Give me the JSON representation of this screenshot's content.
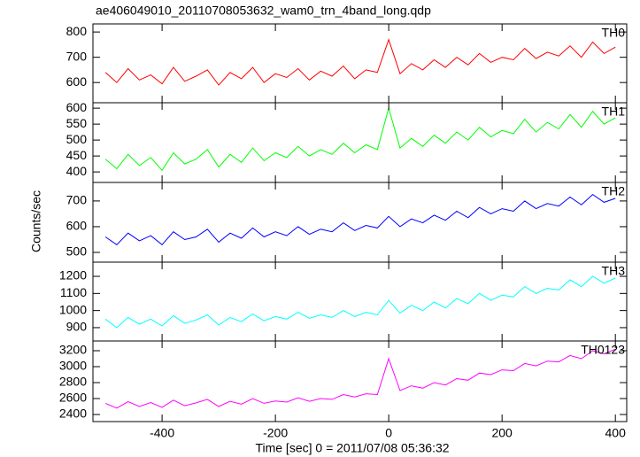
{
  "title": "ae406049010_20110708053632_wam0_trn_4band_long.qdp",
  "ylabel": "Counts/sec",
  "xlabel": "Time [sec] 0 = 2011/07/08 05:36:32",
  "chart_data": [
    {
      "type": "line",
      "label": "TH0",
      "color": "#ff0000",
      "x": [
        -500,
        -480,
        -460,
        -440,
        -420,
        -400,
        -380,
        -360,
        -340,
        -320,
        -300,
        -280,
        -260,
        -240,
        -220,
        -200,
        -180,
        -160,
        -140,
        -120,
        -100,
        -80,
        -60,
        -40,
        -20,
        0,
        20,
        40,
        60,
        80,
        100,
        120,
        140,
        160,
        180,
        200,
        220,
        240,
        260,
        280,
        300,
        320,
        340,
        360,
        380,
        400
      ],
      "values": [
        640,
        600,
        655,
        610,
        630,
        595,
        660,
        605,
        625,
        650,
        590,
        640,
        615,
        660,
        600,
        635,
        620,
        655,
        610,
        645,
        625,
        665,
        615,
        650,
        640,
        770,
        635,
        675,
        650,
        690,
        660,
        700,
        670,
        715,
        680,
        700,
        690,
        735,
        695,
        720,
        705,
        745,
        700,
        760,
        715,
        740
      ],
      "xlim": [
        -522,
        420
      ],
      "xticks": [
        -400,
        -200,
        0,
        200,
        400
      ],
      "ylim": [
        520,
        832
      ],
      "yticks": [
        600,
        700,
        800
      ]
    },
    {
      "type": "line",
      "label": "TH1",
      "color": "#00ff00",
      "x": [
        -500,
        -480,
        -460,
        -440,
        -420,
        -400,
        -380,
        -360,
        -340,
        -320,
        -300,
        -280,
        -260,
        -240,
        -220,
        -200,
        -180,
        -160,
        -140,
        -120,
        -100,
        -80,
        -60,
        -40,
        -20,
        0,
        20,
        40,
        60,
        80,
        100,
        120,
        140,
        160,
        180,
        200,
        220,
        240,
        260,
        280,
        300,
        320,
        340,
        360,
        380,
        400
      ],
      "values": [
        440,
        410,
        455,
        420,
        445,
        405,
        460,
        425,
        440,
        470,
        415,
        455,
        430,
        475,
        435,
        460,
        445,
        480,
        450,
        470,
        455,
        490,
        460,
        485,
        470,
        600,
        475,
        505,
        480,
        515,
        490,
        525,
        500,
        540,
        510,
        530,
        520,
        565,
        525,
        555,
        535,
        580,
        540,
        590,
        550,
        570
      ],
      "xlim": [
        -522,
        420
      ],
      "xticks": [
        -400,
        -200,
        0,
        200,
        400
      ],
      "ylim": [
        367,
        617
      ],
      "yticks": [
        400,
        450,
        500,
        550,
        600
      ]
    },
    {
      "type": "line",
      "label": "TH2",
      "color": "#0000ff",
      "x": [
        -500,
        -480,
        -460,
        -440,
        -420,
        -400,
        -380,
        -360,
        -340,
        -320,
        -300,
        -280,
        -260,
        -240,
        -220,
        -200,
        -180,
        -160,
        -140,
        -120,
        -100,
        -80,
        -60,
        -40,
        -20,
        0,
        20,
        40,
        60,
        80,
        100,
        120,
        140,
        160,
        180,
        200,
        220,
        240,
        260,
        280,
        300,
        320,
        340,
        360,
        380,
        400
      ],
      "values": [
        560,
        530,
        575,
        545,
        565,
        530,
        580,
        550,
        560,
        590,
        540,
        575,
        555,
        595,
        560,
        580,
        565,
        600,
        570,
        590,
        580,
        615,
        585,
        605,
        595,
        640,
        600,
        630,
        615,
        645,
        625,
        660,
        635,
        675,
        650,
        670,
        660,
        700,
        670,
        690,
        680,
        715,
        685,
        725,
        695,
        710
      ],
      "xlim": [
        -522,
        420
      ],
      "xticks": [
        -400,
        -200,
        0,
        200,
        400
      ],
      "ylim": [
        462,
        772
      ],
      "yticks": [
        500,
        600,
        700
      ]
    },
    {
      "type": "line",
      "label": "TH3",
      "color": "#00ffff",
      "x": [
        -500,
        -480,
        -460,
        -440,
        -420,
        -400,
        -380,
        -360,
        -340,
        -320,
        -300,
        -280,
        -260,
        -240,
        -220,
        -200,
        -180,
        -160,
        -140,
        -120,
        -100,
        -80,
        -60,
        -40,
        -20,
        0,
        20,
        40,
        60,
        80,
        100,
        120,
        140,
        160,
        180,
        200,
        220,
        240,
        260,
        280,
        300,
        320,
        340,
        360,
        380,
        400
      ],
      "values": [
        950,
        900,
        960,
        920,
        950,
        910,
        970,
        925,
        945,
        975,
        915,
        960,
        935,
        980,
        940,
        965,
        950,
        990,
        955,
        975,
        960,
        1000,
        965,
        990,
        975,
        1060,
        985,
        1030,
        1000,
        1050,
        1015,
        1070,
        1040,
        1100,
        1060,
        1090,
        1080,
        1140,
        1100,
        1130,
        1120,
        1180,
        1140,
        1200,
        1160,
        1190
      ],
      "xlim": [
        -522,
        420
      ],
      "xticks": [
        -400,
        -200,
        0,
        200,
        400
      ],
      "ylim": [
        822,
        1283
      ],
      "yticks": [
        900,
        1000,
        1100,
        1200
      ]
    },
    {
      "type": "line",
      "label": "TH0123",
      "color": "#ff00ff",
      "x": [
        -500,
        -480,
        -460,
        -440,
        -420,
        -400,
        -380,
        -360,
        -340,
        -320,
        -300,
        -280,
        -260,
        -240,
        -220,
        -200,
        -180,
        -160,
        -140,
        -120,
        -100,
        -80,
        -60,
        -40,
        -20,
        0,
        20,
        40,
        60,
        80,
        100,
        120,
        140,
        160,
        180,
        200,
        220,
        240,
        260,
        280,
        300,
        320,
        340,
        360,
        380,
        400
      ],
      "values": [
        2540,
        2480,
        2560,
        2500,
        2550,
        2490,
        2580,
        2510,
        2545,
        2590,
        2500,
        2565,
        2530,
        2600,
        2540,
        2570,
        2555,
        2610,
        2565,
        2600,
        2590,
        2650,
        2620,
        2660,
        2650,
        3100,
        2700,
        2760,
        2730,
        2800,
        2770,
        2850,
        2830,
        2920,
        2900,
        2960,
        2950,
        3040,
        3010,
        3070,
        3060,
        3140,
        3100,
        3200,
        3160,
        3220
      ],
      "xlim": [
        -522,
        420
      ],
      "xticks": [
        -400,
        -200,
        0,
        200,
        400
      ],
      "ylim": [
        2311,
        3322
      ],
      "yticks": [
        2400,
        2600,
        2800,
        3000,
        3200
      ]
    }
  ]
}
